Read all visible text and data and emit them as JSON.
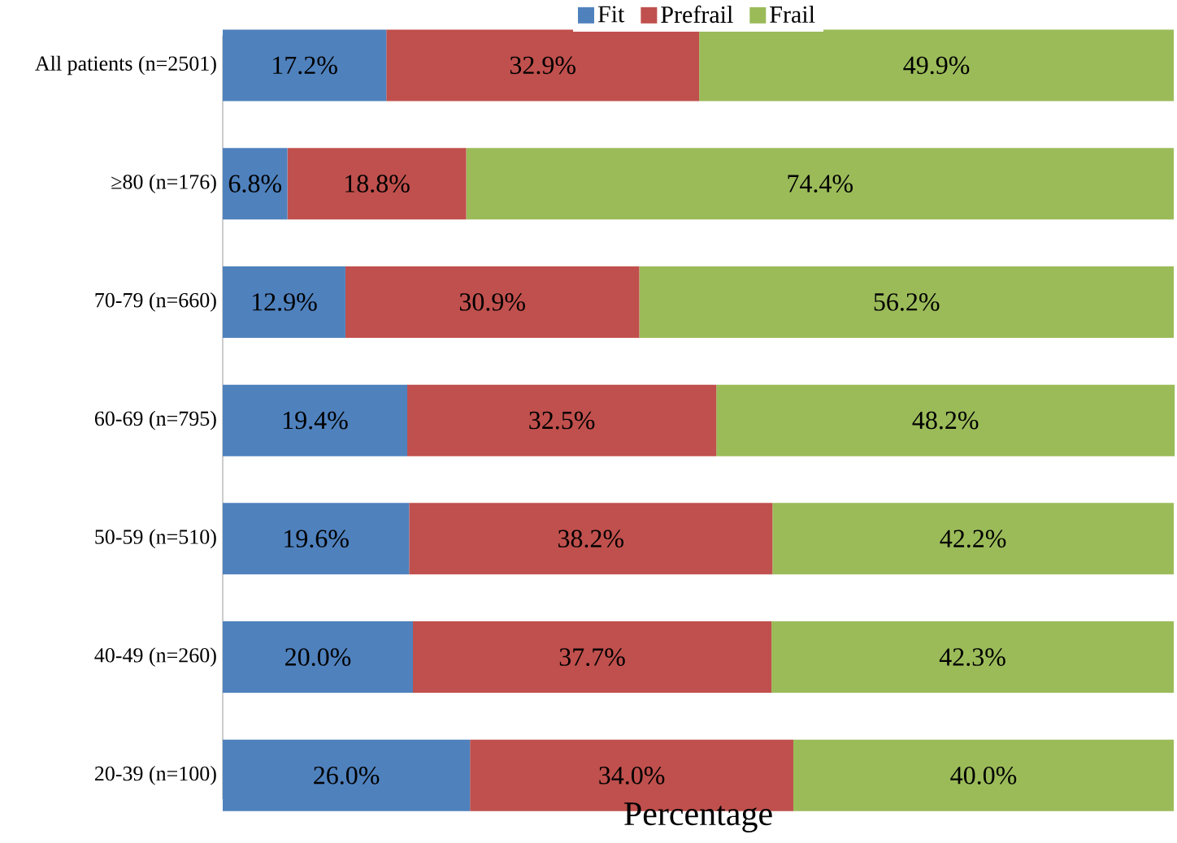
{
  "chart_data": {
    "type": "bar",
    "orientation": "horizontal",
    "stacked": true,
    "xlabel": "Percentage",
    "xlim": [
      0,
      100
    ],
    "tick_labels": "y",
    "legend": "top",
    "categories": [
      "All patients (n=2501)",
      "≥80 (n=176)",
      "70-79 (n=660)",
      "60-69 (n=795)",
      "50-59 (n=510)",
      "40-49 (n=260)",
      "20-39 (n=100)"
    ],
    "series": [
      {
        "name": "Fit",
        "color": "#4f81bd",
        "values": [
          17.2,
          6.8,
          12.9,
          19.4,
          19.6,
          20.0,
          26.0
        ],
        "value_labels": [
          "17.2%",
          "6.8%",
          "12.9%",
          "19.4%",
          "19.6%",
          "20.0%",
          "26.0%"
        ]
      },
      {
        "name": "Prefrail",
        "color": "#c0504d",
        "values": [
          32.9,
          18.8,
          30.9,
          32.5,
          38.2,
          37.7,
          34.0
        ],
        "value_labels": [
          "32.9%",
          "18.8%",
          "30.9%",
          "32.5%",
          "38.2%",
          "37.7%",
          "34.0%"
        ]
      },
      {
        "name": "Frail",
        "color": "#9bbb59",
        "values": [
          49.9,
          74.4,
          56.2,
          48.2,
          42.2,
          42.3,
          40.0
        ],
        "value_labels": [
          "49.9%",
          "74.4%",
          "56.2%",
          "48.2%",
          "42.2%",
          "42.3%",
          "40.0%"
        ]
      }
    ]
  }
}
